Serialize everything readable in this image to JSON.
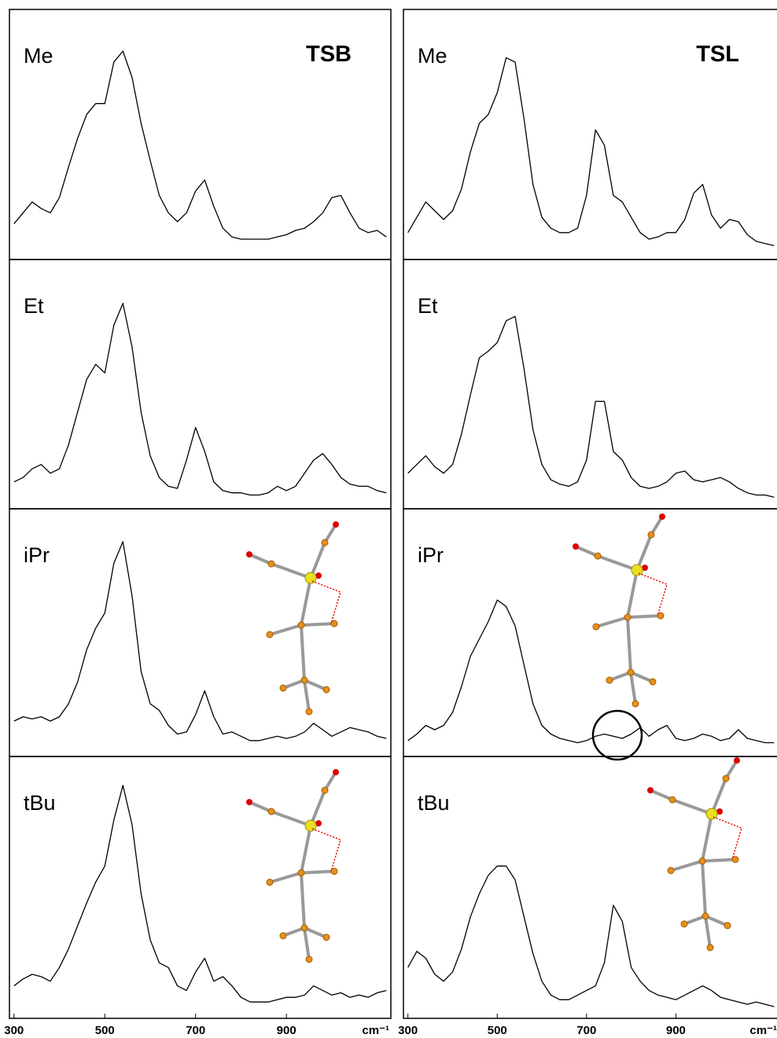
{
  "chart_data": [
    {
      "type": "line",
      "title": "TSB",
      "x_label": "cm⁻¹",
      "x": [
        300,
        320,
        340,
        360,
        380,
        400,
        420,
        440,
        460,
        480,
        500,
        520,
        540,
        560,
        580,
        600,
        620,
        640,
        660,
        680,
        700,
        720,
        740,
        760,
        780,
        800,
        820,
        840,
        860,
        880,
        900,
        920,
        940,
        960,
        980,
        1000,
        1020,
        1040,
        1060,
        1080,
        1100,
        1120
      ],
      "xlim": [
        290,
        1130
      ],
      "xticks": [
        300,
        500,
        700,
        900
      ],
      "ylim": [
        0,
        100
      ],
      "series": [
        {
          "name": "Me",
          "color": "#000000",
          "values": [
            12,
            17,
            22,
            19,
            17,
            24,
            38,
            51,
            62,
            67,
            67,
            86,
            91,
            79,
            58,
            41,
            25,
            17,
            13,
            17,
            27,
            32,
            20,
            10,
            6,
            5,
            5,
            5,
            5,
            6,
            7,
            9,
            10,
            13,
            17,
            24,
            25,
            17,
            10,
            8,
            9,
            6
          ]
        },
        {
          "name": "Et",
          "color": "#000000",
          "values": [
            8,
            10,
            14,
            16,
            12,
            14,
            25,
            40,
            55,
            62,
            58,
            80,
            90,
            70,
            40,
            20,
            10,
            6,
            5,
            18,
            33,
            22,
            8,
            4,
            3,
            3,
            2,
            2,
            3,
            6,
            4,
            6,
            12,
            18,
            21,
            16,
            10,
            7,
            6,
            6,
            4,
            3
          ]
        },
        {
          "name": "iPr",
          "color": "#000000",
          "values": [
            12,
            14,
            13,
            14,
            12,
            14,
            20,
            30,
            45,
            55,
            62,
            85,
            95,
            70,
            35,
            20,
            17,
            10,
            6,
            7,
            15,
            26,
            14,
            6,
            7,
            5,
            3,
            3,
            4,
            5,
            4,
            5,
            7,
            11,
            8,
            5,
            7,
            9,
            8,
            7,
            5,
            4
          ]
        },
        {
          "name": "tBu",
          "color": "#000000",
          "values": [
            10,
            13,
            15,
            14,
            12,
            18,
            26,
            36,
            46,
            55,
            62,
            82,
            97,
            80,
            50,
            30,
            20,
            18,
            10,
            8,
            16,
            22,
            12,
            14,
            10,
            5,
            3,
            3,
            3,
            4,
            5,
            5,
            6,
            10,
            8,
            6,
            7,
            5,
            6,
            5,
            7,
            8
          ]
        }
      ]
    },
    {
      "type": "line",
      "title": "TSL",
      "x_label": "cm⁻¹",
      "x": [
        300,
        320,
        340,
        360,
        380,
        400,
        420,
        440,
        460,
        480,
        500,
        520,
        540,
        560,
        580,
        600,
        620,
        640,
        660,
        680,
        700,
        720,
        740,
        760,
        780,
        800,
        820,
        840,
        860,
        880,
        900,
        920,
        940,
        960,
        980,
        1000,
        1020,
        1040,
        1060,
        1080,
        1100,
        1120
      ],
      "xlim": [
        290,
        1130
      ],
      "xticks": [
        300,
        500,
        700,
        900
      ],
      "ylim": [
        0,
        100
      ],
      "series": [
        {
          "name": "Me",
          "color": "#000000",
          "values": [
            8,
            15,
            22,
            18,
            14,
            18,
            28,
            45,
            58,
            62,
            72,
            88,
            86,
            60,
            30,
            15,
            10,
            8,
            8,
            10,
            25,
            55,
            48,
            25,
            22,
            15,
            8,
            5,
            6,
            8,
            8,
            14,
            26,
            30,
            16,
            10,
            14,
            13,
            7,
            4,
            3,
            2
          ]
        },
        {
          "name": "Et",
          "color": "#000000",
          "values": [
            12,
            16,
            20,
            15,
            12,
            16,
            30,
            48,
            65,
            68,
            72,
            82,
            84,
            60,
            32,
            16,
            9,
            7,
            6,
            8,
            18,
            45,
            45,
            22,
            18,
            10,
            6,
            5,
            6,
            8,
            12,
            13,
            9,
            8,
            9,
            10,
            8,
            5,
            3,
            2,
            2,
            1
          ]
        },
        {
          "name": "iPr",
          "color": "#000000",
          "values": [
            3,
            6,
            10,
            8,
            10,
            16,
            28,
            42,
            50,
            58,
            68,
            65,
            56,
            38,
            20,
            10,
            6,
            4,
            3,
            2,
            3,
            5,
            6,
            5,
            4,
            6,
            9,
            5,
            8,
            10,
            4,
            3,
            4,
            6,
            5,
            3,
            4,
            8,
            4,
            3,
            2,
            2
          ]
        },
        {
          "name": "tBu",
          "color": "#000000",
          "values": [
            18,
            25,
            22,
            15,
            12,
            16,
            26,
            40,
            50,
            58,
            62,
            62,
            56,
            40,
            24,
            12,
            6,
            4,
            4,
            6,
            8,
            10,
            20,
            45,
            38,
            18,
            12,
            8,
            6,
            5,
            4,
            6,
            8,
            10,
            8,
            5,
            4,
            3,
            2,
            3,
            2,
            1
          ]
        }
      ]
    }
  ]
}
